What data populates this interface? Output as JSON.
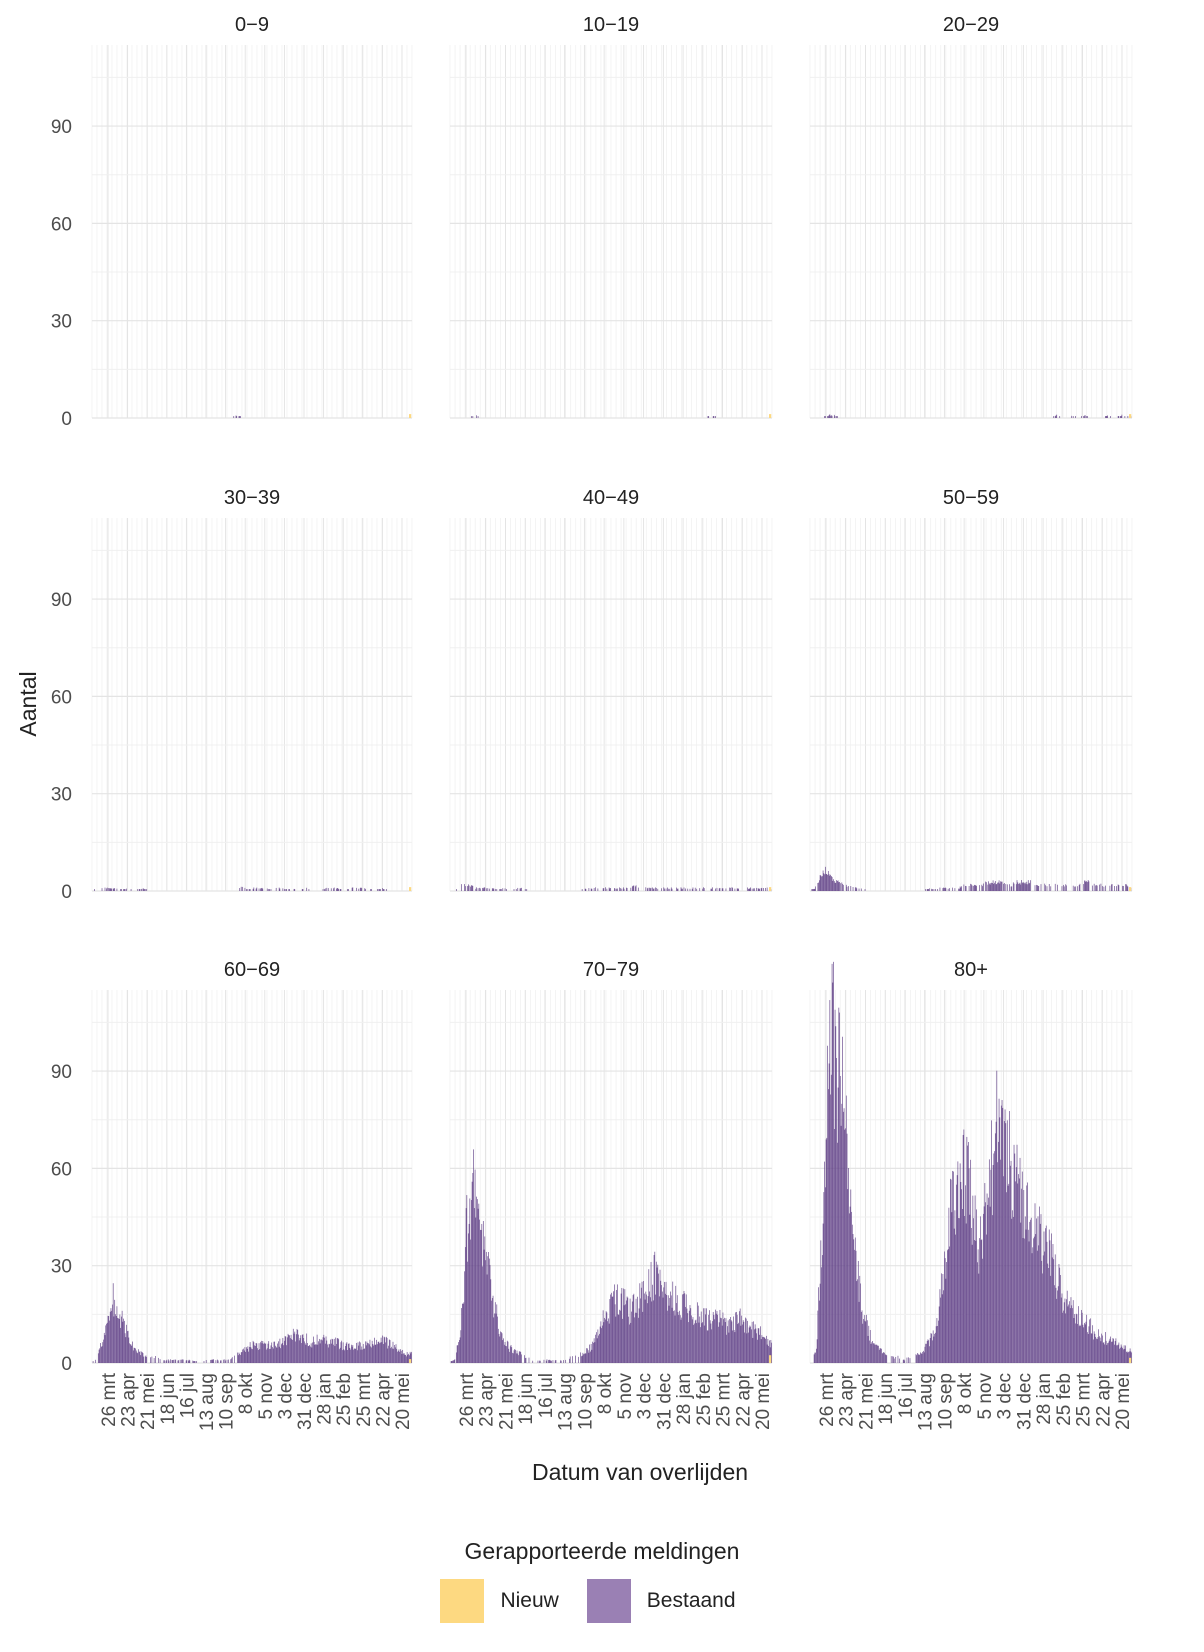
{
  "chart_data": {
    "type": "bar",
    "stacked": true,
    "facet_by": "age group",
    "ylabel": "Aantal",
    "xlabel": "Datum van overlijden",
    "ylim": [
      0,
      115
    ],
    "yticks": [
      0,
      30,
      60,
      90
    ],
    "xticks": [
      "26 mrt",
      "23 apr",
      "21 mei",
      "18 jun",
      "16 jul",
      "13 aug",
      "10 sep",
      "8 okt",
      "5 nov",
      "3 dec",
      "31 dec",
      "28 jan",
      "25 feb",
      "25 mrt",
      "22 apr",
      "20 mei"
    ],
    "grid": true,
    "legend": {
      "title": "Gerapporteerde meldingen",
      "position": "bottom",
      "items": [
        {
          "name": "Nieuw",
          "color": "#fdd981"
        },
        {
          "name": "Bestaand",
          "color": "#9a80b4"
        }
      ]
    },
    "bar_color": "#5f3f86",
    "facets": [
      {
        "label": "0−9",
        "weekly_peak": [
          0,
          0,
          0,
          0,
          0,
          0,
          0,
          0,
          0,
          0,
          0,
          0,
          0,
          0,
          0,
          0,
          0,
          0,
          0,
          0,
          0,
          0,
          0,
          0,
          0,
          0,
          0,
          0,
          0,
          1,
          0,
          0,
          0,
          0,
          0,
          0,
          0,
          0,
          0,
          0,
          0,
          0,
          0,
          0,
          0,
          0,
          0,
          0,
          0,
          0,
          0,
          0,
          0,
          0,
          0,
          0,
          0,
          0,
          0,
          0,
          0,
          0,
          0,
          0,
          0
        ]
      },
      {
        "label": "10−19",
        "weekly_peak": [
          0,
          0,
          0,
          0,
          0,
          1,
          0,
          0,
          0,
          0,
          0,
          0,
          0,
          0,
          0,
          0,
          0,
          0,
          0,
          0,
          0,
          0,
          0,
          0,
          0,
          0,
          0,
          0,
          0,
          0,
          0,
          0,
          0,
          0,
          0,
          0,
          0,
          0,
          0,
          0,
          0,
          0,
          0,
          0,
          0,
          0,
          0,
          0,
          0,
          0,
          0,
          0,
          1,
          0,
          0,
          0,
          0,
          0,
          0,
          0,
          0,
          0,
          0,
          0,
          0
        ]
      },
      {
        "label": "20−29",
        "weekly_peak": [
          0,
          0,
          0,
          0,
          1,
          1,
          0,
          0,
          0,
          0,
          0,
          0,
          0,
          0,
          0,
          0,
          0,
          0,
          0,
          0,
          0,
          0,
          0,
          0,
          0,
          0,
          0,
          0,
          0,
          0,
          0,
          0,
          0,
          0,
          0,
          0,
          0,
          0,
          0,
          0,
          0,
          0,
          0,
          0,
          0,
          0,
          0,
          0,
          0,
          0,
          0,
          0,
          0,
          1,
          0,
          0,
          1,
          0,
          0,
          1,
          0,
          0,
          0,
          0,
          1,
          0,
          0,
          1,
          0,
          1
        ]
      },
      {
        "label": "30−39",
        "weekly_peak": [
          0,
          1,
          1,
          1,
          1,
          1,
          0,
          1,
          0,
          0,
          1,
          0,
          0,
          0,
          0,
          0,
          0,
          0,
          0,
          0,
          0,
          0,
          0,
          0,
          0,
          0,
          0,
          0,
          0,
          0,
          2,
          0,
          1,
          1,
          1,
          1,
          0,
          1,
          1,
          0,
          1,
          0,
          0,
          1,
          0,
          0,
          0,
          1,
          1,
          1,
          0,
          0,
          1,
          1,
          1,
          1,
          0,
          0,
          1,
          0,
          0,
          0,
          0,
          0,
          0
        ]
      },
      {
        "label": "40−49",
        "weekly_peak": [
          0,
          0,
          2,
          2,
          2,
          1,
          1,
          1,
          1,
          1,
          0,
          1,
          0,
          0,
          1,
          1,
          0,
          0,
          0,
          0,
          0,
          0,
          0,
          0,
          0,
          0,
          0,
          0,
          1,
          1,
          1,
          1,
          1,
          1,
          1,
          1,
          1,
          1,
          2,
          1,
          1,
          1,
          1,
          1,
          1,
          1,
          1,
          1,
          1,
          1,
          1,
          1,
          1,
          1,
          1,
          1,
          1,
          1,
          1,
          1,
          1,
          1,
          1,
          1,
          1,
          1,
          0
        ]
      },
      {
        "label": "50−59",
        "weekly_peak": [
          0,
          1,
          5,
          7,
          6,
          4,
          3,
          2,
          2,
          1,
          1,
          1,
          0,
          0,
          0,
          0,
          0,
          0,
          0,
          0,
          0,
          0,
          0,
          0,
          0,
          1,
          0,
          1,
          1,
          1,
          1,
          1,
          2,
          2,
          2,
          2,
          2,
          3,
          3,
          3,
          3,
          2,
          2,
          3,
          3,
          3,
          3,
          2,
          2,
          2,
          2,
          2,
          2,
          2,
          2,
          2,
          2,
          3,
          3,
          2,
          2,
          2,
          2,
          2,
          2,
          2,
          2,
          1
        ]
      },
      {
        "label": "60−69",
        "weekly_peak": [
          0,
          2,
          8,
          14,
          24,
          18,
          14,
          10,
          6,
          4,
          3,
          2,
          2,
          2,
          1,
          1,
          1,
          1,
          1,
          1,
          1,
          0,
          0,
          1,
          1,
          1,
          1,
          1,
          2,
          3,
          4,
          5,
          6,
          6,
          6,
          6,
          6,
          6,
          7,
          8,
          9,
          10,
          9,
          8,
          7,
          8,
          8,
          7,
          7,
          7,
          6,
          6,
          6,
          6,
          6,
          6,
          7,
          7,
          8,
          7,
          6,
          5,
          4,
          3,
          3
        ]
      },
      {
        "label": "70−79",
        "weekly_peak": [
          0,
          2,
          14,
          45,
          62,
          52,
          40,
          30,
          20,
          12,
          7,
          5,
          4,
          3,
          2,
          1,
          1,
          1,
          1,
          1,
          1,
          1,
          2,
          2,
          3,
          4,
          6,
          10,
          14,
          18,
          22,
          21,
          20,
          18,
          20,
          22,
          24,
          28,
          34,
          26,
          24,
          22,
          20,
          20,
          18,
          17,
          16,
          15,
          14,
          16,
          14,
          12,
          13,
          16,
          14,
          12,
          11,
          10,
          8,
          6
        ]
      },
      {
        "label": "80+",
        "weekly_peak": [
          0,
          5,
          45,
          98,
          111,
          98,
          78,
          50,
          34,
          18,
          10,
          6,
          4,
          3,
          2,
          2,
          1,
          2,
          3,
          4,
          6,
          10,
          18,
          32,
          50,
          62,
          68,
          60,
          48,
          40,
          50,
          66,
          80,
          76,
          72,
          64,
          56,
          52,
          48,
          44,
          40,
          38,
          30,
          24,
          20,
          18,
          16,
          14,
          12,
          10,
          9,
          8,
          7,
          6,
          5,
          4
        ]
      }
    ]
  }
}
